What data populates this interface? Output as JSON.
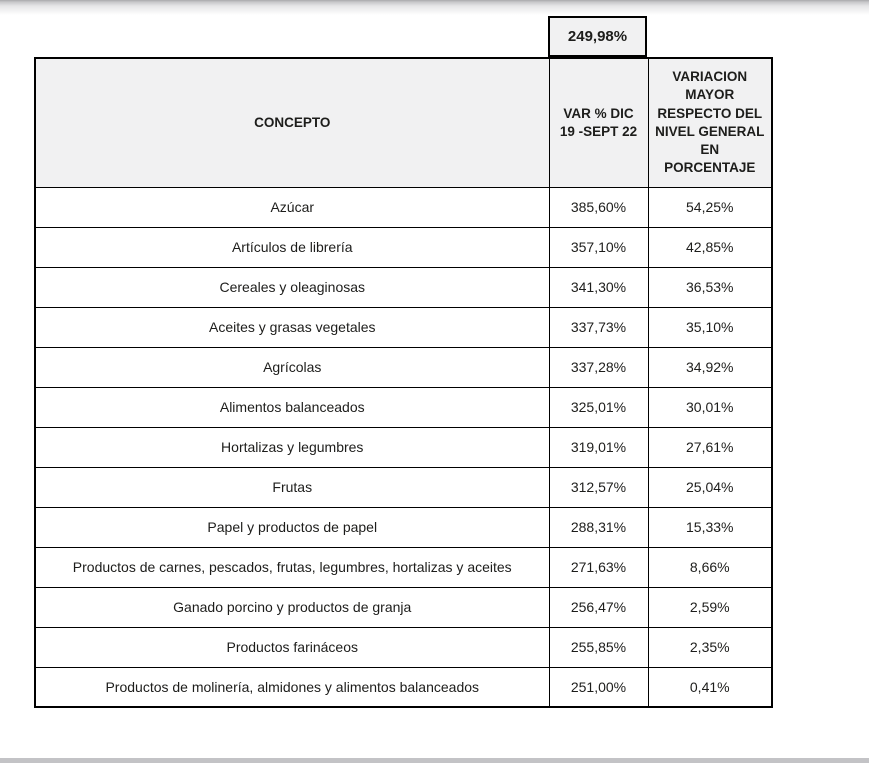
{
  "summary_box": {
    "value": "249,98%"
  },
  "table": {
    "columns": [
      {
        "id": "concepto",
        "label": "CONCEPTO"
      },
      {
        "id": "var_pct",
        "label": "VAR % DIC\n19 -SEPT 22"
      },
      {
        "id": "variacion",
        "label": "VARIACION\nMAYOR\nRESPECTO DEL\nNIVEL GENERAL\nEN\nPORCENTAJE"
      }
    ],
    "rows": [
      {
        "concepto": "Azúcar",
        "var_pct": "385,60%",
        "variacion": "54,25%"
      },
      {
        "concepto": "Artículos de librería",
        "var_pct": "357,10%",
        "variacion": "42,85%"
      },
      {
        "concepto": "Cereales y oleaginosas",
        "var_pct": "341,30%",
        "variacion": "36,53%"
      },
      {
        "concepto": "Aceites y grasas vegetales",
        "var_pct": "337,73%",
        "variacion": "35,10%"
      },
      {
        "concepto": "Agrícolas",
        "var_pct": "337,28%",
        "variacion": "34,92%"
      },
      {
        "concepto": "Alimentos balanceados",
        "var_pct": "325,01%",
        "variacion": "30,01%"
      },
      {
        "concepto": "Hortalizas y legumbres",
        "var_pct": "319,01%",
        "variacion": "27,61%"
      },
      {
        "concepto": "Frutas",
        "var_pct": "312,57%",
        "variacion": "25,04%"
      },
      {
        "concepto": "Papel y productos de papel",
        "var_pct": "288,31%",
        "variacion": "15,33%"
      },
      {
        "concepto": "Productos de carnes, pescados, frutas, legumbres, hortalizas y aceites",
        "var_pct": "271,63%",
        "variacion": "8,66%"
      },
      {
        "concepto": "Ganado porcino y productos de granja",
        "var_pct": "256,47%",
        "variacion": "2,59%"
      },
      {
        "concepto": "Productos farináceos",
        "var_pct": "255,85%",
        "variacion": "2,35%"
      },
      {
        "concepto": "Productos de molinería, almidones y alimentos balanceados",
        "var_pct": "251,00%",
        "variacion": "0,41%"
      }
    ]
  },
  "colors": {
    "header_bg": "#f1f1f2",
    "table_border": "#000000",
    "text": "#1d1d1b",
    "bottom_bar": "#c3c3c6",
    "top_shadow": "#a9a9ab"
  }
}
